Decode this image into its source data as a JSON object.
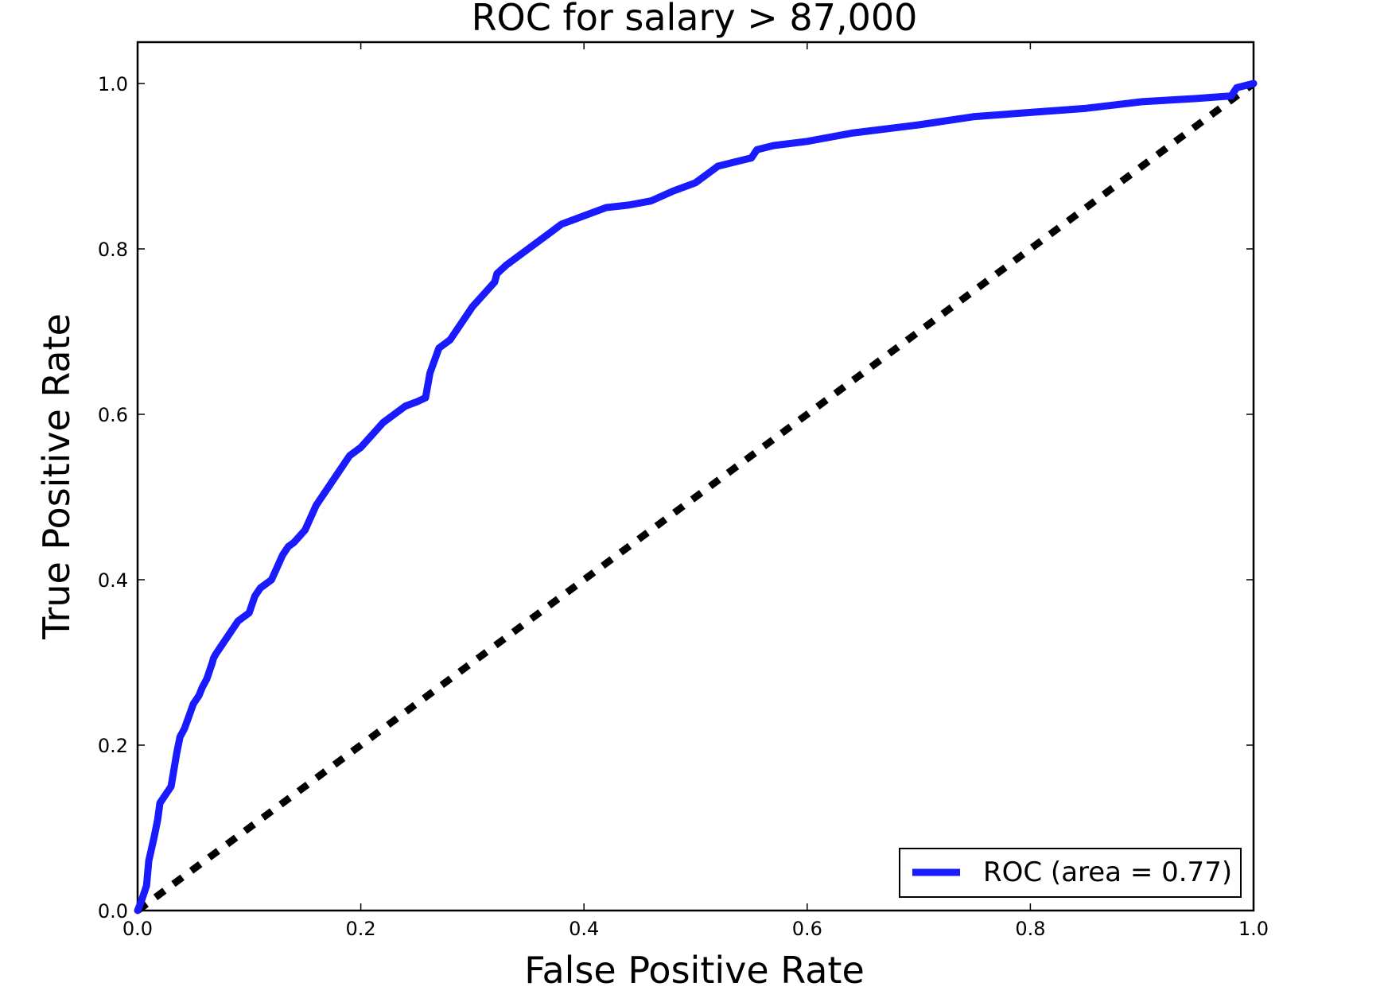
{
  "chart_data": {
    "type": "line",
    "title": "ROC for salary > 87,000",
    "xlabel": "False Positive Rate",
    "ylabel": "True Positive Rate",
    "xlim": [
      0.0,
      1.0
    ],
    "ylim": [
      0.0,
      1.05
    ],
    "xticks": [
      0.0,
      0.2,
      0.4,
      0.6,
      0.8,
      1.0
    ],
    "yticks": [
      0.0,
      0.2,
      0.4,
      0.6,
      0.8,
      1.0
    ],
    "xtick_labels": [
      "0.0",
      "0.2",
      "0.4",
      "0.6",
      "0.8",
      "1.0"
    ],
    "ytick_labels": [
      "0.0",
      "0.2",
      "0.4",
      "0.6",
      "0.8",
      "1.0"
    ],
    "grid": false,
    "legend_position": "bottom-right",
    "legend_label": "ROC (area = 0.77)",
    "colors": {
      "roc": "#1a1aff",
      "diagonal": "#000000"
    },
    "series": [
      {
        "name": "ROC (area = 0.77)",
        "style": "solid",
        "x": [
          0.0,
          0.003,
          0.008,
          0.01,
          0.015,
          0.018,
          0.02,
          0.025,
          0.03,
          0.035,
          0.038,
          0.042,
          0.05,
          0.055,
          0.058,
          0.062,
          0.067,
          0.068,
          0.07,
          0.075,
          0.08,
          0.09,
          0.095,
          0.1,
          0.105,
          0.11,
          0.115,
          0.12,
          0.13,
          0.135,
          0.14,
          0.15,
          0.16,
          0.165,
          0.17,
          0.18,
          0.19,
          0.2,
          0.21,
          0.22,
          0.23,
          0.24,
          0.25,
          0.258,
          0.262,
          0.27,
          0.28,
          0.29,
          0.3,
          0.31,
          0.32,
          0.322,
          0.33,
          0.34,
          0.35,
          0.36,
          0.37,
          0.38,
          0.39,
          0.4,
          0.42,
          0.44,
          0.46,
          0.48,
          0.5,
          0.52,
          0.535,
          0.55,
          0.555,
          0.57,
          0.6,
          0.64,
          0.7,
          0.75,
          0.8,
          0.85,
          0.9,
          0.95,
          0.98,
          0.985,
          1.0
        ],
        "y": [
          0.0,
          0.01,
          0.03,
          0.06,
          0.09,
          0.11,
          0.13,
          0.14,
          0.15,
          0.19,
          0.21,
          0.22,
          0.25,
          0.26,
          0.27,
          0.28,
          0.3,
          0.305,
          0.31,
          0.32,
          0.33,
          0.35,
          0.355,
          0.36,
          0.38,
          0.39,
          0.395,
          0.4,
          0.43,
          0.44,
          0.445,
          0.46,
          0.49,
          0.5,
          0.51,
          0.53,
          0.55,
          0.56,
          0.575,
          0.59,
          0.6,
          0.61,
          0.615,
          0.62,
          0.65,
          0.68,
          0.69,
          0.71,
          0.73,
          0.745,
          0.76,
          0.77,
          0.78,
          0.79,
          0.8,
          0.81,
          0.82,
          0.83,
          0.835,
          0.84,
          0.85,
          0.853,
          0.858,
          0.87,
          0.88,
          0.9,
          0.905,
          0.91,
          0.92,
          0.925,
          0.93,
          0.94,
          0.95,
          0.96,
          0.965,
          0.97,
          0.978,
          0.982,
          0.985,
          0.995,
          1.0
        ]
      },
      {
        "style": "dashed",
        "x": [
          0.0,
          1.0
        ],
        "y": [
          0.0,
          1.0
        ]
      }
    ]
  }
}
